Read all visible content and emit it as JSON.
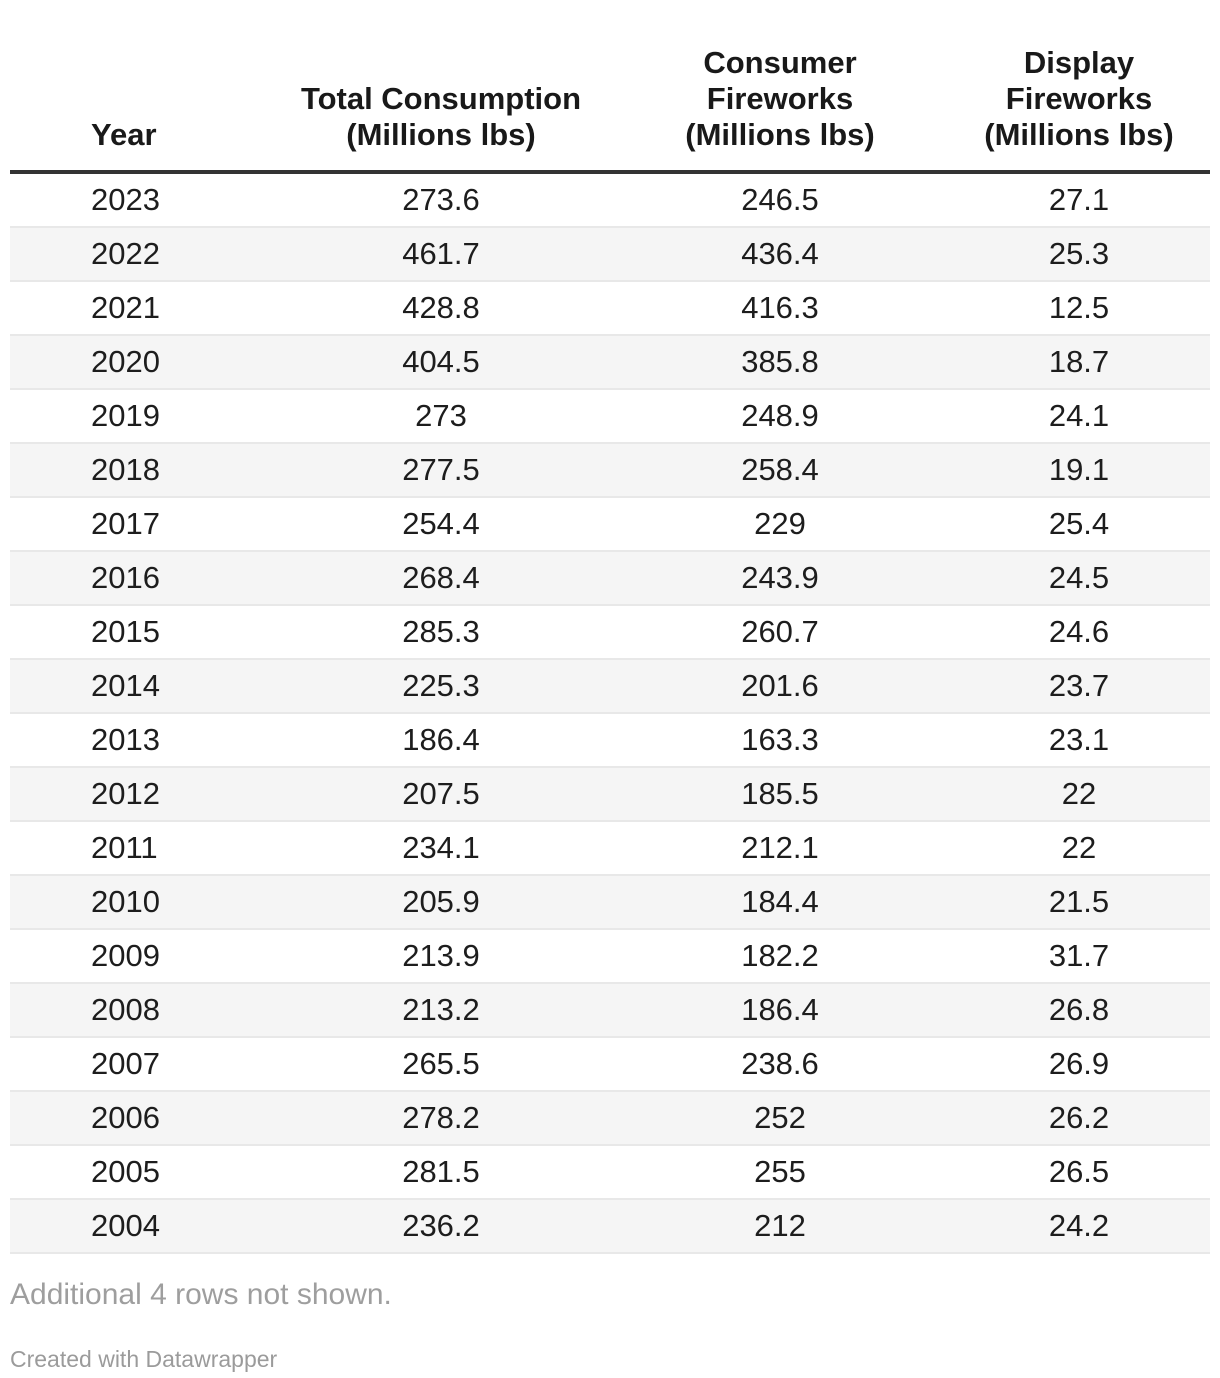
{
  "table": {
    "columns": [
      {
        "id": "year",
        "label": "Year"
      },
      {
        "id": "total",
        "label": "Total Consumption\n(Millions lbs)"
      },
      {
        "id": "consumer",
        "label": "Consumer\nFireworks\n(Millions lbs)"
      },
      {
        "id": "display",
        "label": "Display\nFireworks\n(Millions lbs)"
      }
    ],
    "rows": [
      {
        "cells": [
          "2023",
          "273.6",
          "246.5",
          "27.1"
        ]
      },
      {
        "cells": [
          "2022",
          "461.7",
          "436.4",
          "25.3"
        ]
      },
      {
        "cells": [
          "2021",
          "428.8",
          "416.3",
          "12.5"
        ]
      },
      {
        "cells": [
          "2020",
          "404.5",
          "385.8",
          "18.7"
        ]
      },
      {
        "cells": [
          "2019",
          "273",
          "248.9",
          "24.1"
        ]
      },
      {
        "cells": [
          "2018",
          "277.5",
          "258.4",
          "19.1"
        ]
      },
      {
        "cells": [
          "2017",
          "254.4",
          "229",
          "25.4"
        ]
      },
      {
        "cells": [
          "2016",
          "268.4",
          "243.9",
          "24.5"
        ]
      },
      {
        "cells": [
          "2015",
          "285.3",
          "260.7",
          "24.6"
        ]
      },
      {
        "cells": [
          "2014",
          "225.3",
          "201.6",
          "23.7"
        ]
      },
      {
        "cells": [
          "2013",
          "186.4",
          "163.3",
          "23.1"
        ]
      },
      {
        "cells": [
          "2012",
          "207.5",
          "185.5",
          "22"
        ]
      },
      {
        "cells": [
          "2011",
          "234.1",
          "212.1",
          "22"
        ]
      },
      {
        "cells": [
          "2010",
          "205.9",
          "184.4",
          "21.5"
        ]
      },
      {
        "cells": [
          "2009",
          "213.9",
          "182.2",
          "31.7"
        ]
      },
      {
        "cells": [
          "2008",
          "213.2",
          "186.4",
          "26.8"
        ]
      },
      {
        "cells": [
          "2007",
          "265.5",
          "238.6",
          "26.9"
        ]
      },
      {
        "cells": [
          "2006",
          "278.2",
          "252",
          "26.2"
        ]
      },
      {
        "cells": [
          "2005",
          "281.5",
          "255",
          "26.5"
        ]
      },
      {
        "cells": [
          "2004",
          "236.2",
          "212",
          "24.2"
        ]
      }
    ]
  },
  "footer": {
    "rows_note": "Additional 4 rows not shown.",
    "attribution": "Created with Datawrapper"
  },
  "colors": {
    "header_text": "#191919",
    "body_text": "#1d1d1d",
    "header_rule": "#333333",
    "row_separator": "#e8e8e8",
    "zebra_row_bg": "#f5f5f5",
    "note_text": "#9e9e9e",
    "attribution_text": "#9b9b9b",
    "background": "#ffffff"
  },
  "chart_data": {
    "type": "table",
    "title": "",
    "columns": [
      "Year",
      "Total Consumption (Millions lbs)",
      "Consumer Fireworks (Millions lbs)",
      "Display Fireworks (Millions lbs)"
    ],
    "rows": [
      [
        2023,
        273.6,
        246.5,
        27.1
      ],
      [
        2022,
        461.7,
        436.4,
        25.3
      ],
      [
        2021,
        428.8,
        416.3,
        12.5
      ],
      [
        2020,
        404.5,
        385.8,
        18.7
      ],
      [
        2019,
        273,
        248.9,
        24.1
      ],
      [
        2018,
        277.5,
        258.4,
        19.1
      ],
      [
        2017,
        254.4,
        229,
        25.4
      ],
      [
        2016,
        268.4,
        243.9,
        24.5
      ],
      [
        2015,
        285.3,
        260.7,
        24.6
      ],
      [
        2014,
        225.3,
        201.6,
        23.7
      ],
      [
        2013,
        186.4,
        163.3,
        23.1
      ],
      [
        2012,
        207.5,
        185.5,
        22
      ],
      [
        2011,
        234.1,
        212.1,
        22
      ],
      [
        2010,
        205.9,
        184.4,
        21.5
      ],
      [
        2009,
        213.9,
        182.2,
        31.7
      ],
      [
        2008,
        213.2,
        186.4,
        26.8
      ],
      [
        2007,
        265.5,
        238.6,
        26.9
      ],
      [
        2006,
        278.2,
        252,
        26.2
      ],
      [
        2005,
        281.5,
        255,
        26.5
      ],
      [
        2004,
        236.2,
        212,
        24.2
      ]
    ],
    "notes": "Additional 4 rows not shown. Zebra-striped Datawrapper table, numeric columns center-aligned."
  }
}
